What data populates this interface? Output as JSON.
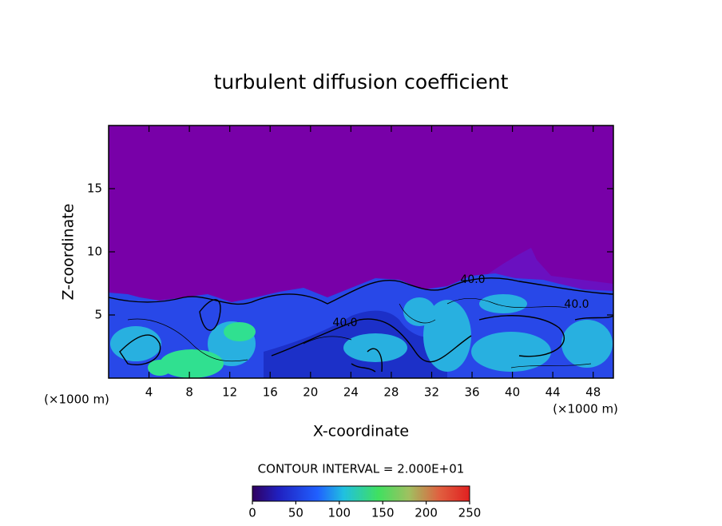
{
  "chart_data": {
    "type": "contour",
    "title": "turbulent diffusion coefficient",
    "x_label": "X-coordinate",
    "y_label": "Z-coordinate",
    "x_unit": "(×1000 m)",
    "y_unit": "(×1000 m)",
    "xlim": [
      0,
      50
    ],
    "xticks": [
      4,
      8,
      12,
      16,
      20,
      24,
      28,
      32,
      36,
      40,
      44,
      48
    ],
    "ylim": [
      0,
      20
    ],
    "yticks": [
      5,
      10,
      15
    ],
    "contour_interval": "CONTOUR INTERVAL = 2.000E+01",
    "contour_labels": [
      "40.0",
      "40.0",
      "40.0"
    ],
    "colorbar": {
      "lim": [
        0,
        250
      ],
      "ticks": [
        0,
        50,
        100,
        150,
        200,
        250
      ]
    }
  }
}
